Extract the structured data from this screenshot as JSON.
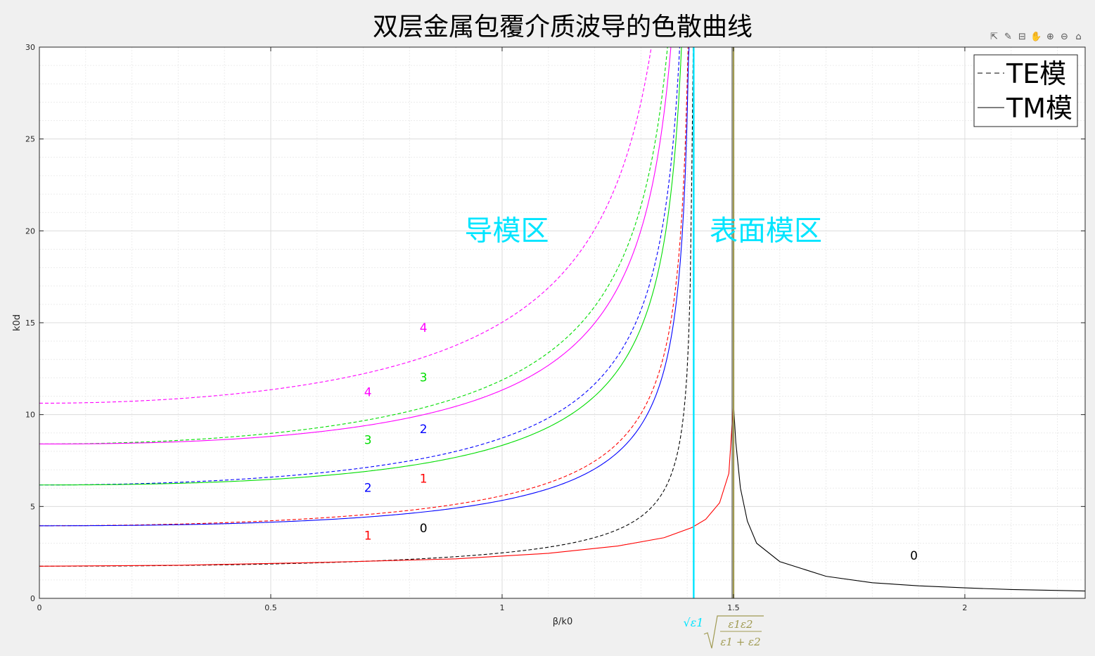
{
  "toolbar": {
    "items": [
      {
        "name": "export-icon",
        "glyph": "⇱"
      },
      {
        "name": "brush-icon",
        "glyph": "✎"
      },
      {
        "name": "data-tip-icon",
        "glyph": "⊟"
      },
      {
        "name": "pan-icon",
        "glyph": "✋"
      },
      {
        "name": "zoom-in-icon",
        "glyph": "⊕"
      },
      {
        "name": "zoom-out-icon",
        "glyph": "⊖"
      },
      {
        "name": "home-icon",
        "glyph": "⌂"
      }
    ]
  },
  "chart_data": {
    "type": "line",
    "title": "双层金属包覆介质波导的色散曲线",
    "xlabel": "β/k0",
    "ylabel": "k0d",
    "xlim": [
      0,
      2.26
    ],
    "ylim": [
      0,
      30
    ],
    "xticks": [
      0,
      0.5,
      1,
      1.5,
      2
    ],
    "xtick_labels": [
      "0",
      "0.5",
      "1",
      "1.5",
      "2"
    ],
    "yticks": [
      0,
      5,
      10,
      15,
      20,
      25,
      30
    ],
    "ytick_labels": [
      "0",
      "5",
      "10",
      "15",
      "20",
      "25",
      "30"
    ],
    "grid": true,
    "minor_grid": true,
    "legend": {
      "position": "top-right",
      "entries": [
        {
          "label": "TE模",
          "style": "dashed"
        },
        {
          "label": "TM模",
          "style": "solid"
        }
      ]
    },
    "series": [
      {
        "name": "TE0",
        "mode": "TE",
        "order": 0,
        "color": "#000000",
        "style": "dashed",
        "n": 1.414,
        "cutoff": 1.75
      },
      {
        "name": "TE1",
        "mode": "TE",
        "order": 1,
        "color": "#ff0000",
        "style": "dashed",
        "n": 1.414,
        "cutoff": 3.95
      },
      {
        "name": "TE2",
        "mode": "TE",
        "order": 2,
        "color": "#0000ff",
        "style": "dashed",
        "n": 1.414,
        "cutoff": 6.17
      },
      {
        "name": "TE3",
        "mode": "TE",
        "order": 3,
        "color": "#00dd00",
        "style": "dashed",
        "n": 1.414,
        "cutoff": 8.4
      },
      {
        "name": "TE4",
        "mode": "TE",
        "order": 4,
        "color": "#ff00ff",
        "style": "dashed",
        "n": 1.414,
        "cutoff": 10.62
      },
      {
        "name": "TM0",
        "mode": "TM",
        "order": 0,
        "color": "#ff0000",
        "style": "solid",
        "kind": "surface-lower",
        "peak_x": 1.5,
        "peak_y": 10.6,
        "points": [
          [
            0,
            1.75
          ],
          [
            0.3,
            1.8
          ],
          [
            0.6,
            1.95
          ],
          [
            0.9,
            2.15
          ],
          [
            1.1,
            2.45
          ],
          [
            1.25,
            2.85
          ],
          [
            1.35,
            3.3
          ],
          [
            1.41,
            3.85
          ],
          [
            1.44,
            4.3
          ],
          [
            1.47,
            5.2
          ],
          [
            1.49,
            6.8
          ],
          [
            1.5,
            10.6
          ]
        ]
      },
      {
        "name": "TM0-upper",
        "mode": "TM",
        "order": 0,
        "color": "#000000",
        "style": "solid",
        "kind": "surface-upper",
        "points": [
          [
            1.5,
            10.6
          ],
          [
            1.505,
            8.5
          ],
          [
            1.515,
            6.0
          ],
          [
            1.53,
            4.2
          ],
          [
            1.55,
            3.0
          ],
          [
            1.6,
            2.0
          ],
          [
            1.7,
            1.2
          ],
          [
            1.8,
            0.85
          ],
          [
            1.9,
            0.68
          ],
          [
            2.0,
            0.57
          ],
          [
            2.1,
            0.48
          ],
          [
            2.26,
            0.4
          ]
        ]
      },
      {
        "name": "TM1",
        "mode": "TM",
        "order": 1,
        "color": "#0000ff",
        "style": "solid",
        "n": 1.414,
        "cutoff": 3.95,
        "bend": 1.15
      },
      {
        "name": "TM2",
        "mode": "TM",
        "order": 2,
        "color": "#00dd00",
        "style": "solid",
        "n": 1.414,
        "cutoff": 6.17,
        "bend": 1.15
      },
      {
        "name": "TM3",
        "mode": "TM",
        "order": 3,
        "color": "#ff00ff",
        "style": "solid",
        "n": 1.414,
        "cutoff": 8.4,
        "bend": 1.15
      }
    ],
    "vlines": [
      {
        "x": 1.414,
        "color": "#00e5ff",
        "label": "√ε1"
      },
      {
        "x": 1.5,
        "color": "#a09a52",
        "label": "√(ε1ε2/(ε1+ε2))"
      }
    ],
    "vline_labels": {
      "sqrt_e1": "√ε1",
      "sp_num": "ε1ε2",
      "sp_den": "ε1 + ε2"
    },
    "region_labels": [
      {
        "text": "导模区",
        "x": 1.01,
        "y": 19.5,
        "color": "#00e5ff"
      },
      {
        "text": "表面模区",
        "x": 1.57,
        "y": 19.5,
        "color": "#00e5ff"
      }
    ],
    "curve_labels": [
      {
        "text": "4",
        "x": 0.83,
        "y": 14.5,
        "color": "#ff00ff"
      },
      {
        "text": "3",
        "x": 0.83,
        "y": 11.8,
        "color": "#00dd00"
      },
      {
        "text": "4",
        "x": 0.71,
        "y": 11.0,
        "color": "#ff00ff"
      },
      {
        "text": "2",
        "x": 0.83,
        "y": 9.0,
        "color": "#0000ff"
      },
      {
        "text": "3",
        "x": 0.71,
        "y": 8.4,
        "color": "#00dd00"
      },
      {
        "text": "1",
        "x": 0.83,
        "y": 6.3,
        "color": "#ff0000"
      },
      {
        "text": "2",
        "x": 0.71,
        "y": 5.8,
        "color": "#0000ff"
      },
      {
        "text": "0",
        "x": 0.83,
        "y": 3.6,
        "color": "#000000"
      },
      {
        "text": "1",
        "x": 0.71,
        "y": 3.2,
        "color": "#ff0000"
      },
      {
        "text": "0",
        "x": 1.89,
        "y": 2.1,
        "color": "#000000"
      }
    ]
  }
}
